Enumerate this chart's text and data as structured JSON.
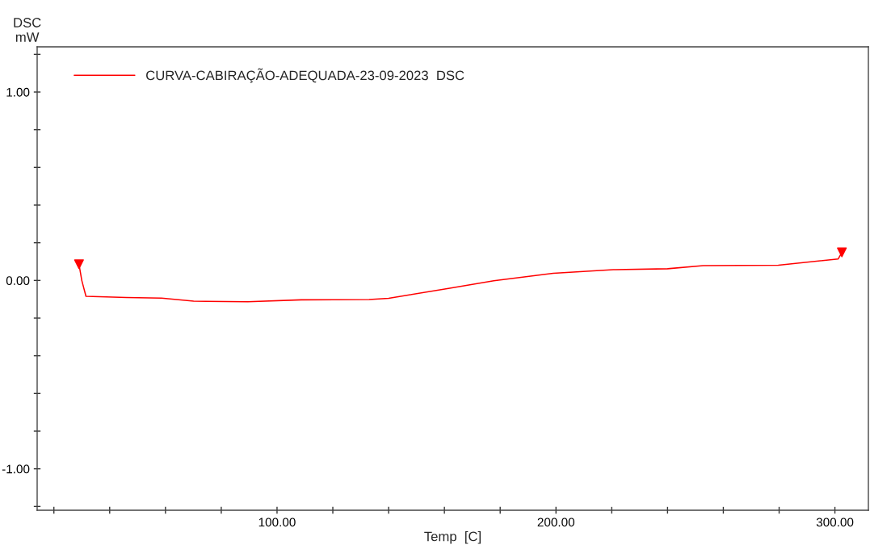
{
  "chart_data": {
    "type": "line",
    "xlabel": "Temp  [C]",
    "ylabel": "DSC\nmW",
    "xlim": [
      14,
      312
    ],
    "ylim": [
      -1.22,
      1.24
    ],
    "xticks": [
      {
        "value": 20,
        "label": null
      },
      {
        "value": 40,
        "label": null
      },
      {
        "value": 60,
        "label": null
      },
      {
        "value": 80,
        "label": null
      },
      {
        "value": 100,
        "label": "100.00"
      },
      {
        "value": 120,
        "label": null
      },
      {
        "value": 140,
        "label": null
      },
      {
        "value": 160,
        "label": null
      },
      {
        "value": 180,
        "label": null
      },
      {
        "value": 200,
        "label": "200.00"
      },
      {
        "value": 220,
        "label": null
      },
      {
        "value": 240,
        "label": null
      },
      {
        "value": 260,
        "label": null
      },
      {
        "value": 280,
        "label": null
      },
      {
        "value": 300,
        "label": "300.00"
      }
    ],
    "yticks": [
      {
        "value": -1.2,
        "label": null
      },
      {
        "value": -1.0,
        "label": "-1.00"
      },
      {
        "value": -0.8,
        "label": null
      },
      {
        "value": -0.6,
        "label": null
      },
      {
        "value": -0.4,
        "label": null
      },
      {
        "value": -0.2,
        "label": null
      },
      {
        "value": 0.0,
        "label": "0.00"
      },
      {
        "value": 0.2,
        "label": null
      },
      {
        "value": 0.4,
        "label": null
      },
      {
        "value": 0.6,
        "label": null
      },
      {
        "value": 0.8,
        "label": null
      },
      {
        "value": 1.0,
        "label": "1.00"
      },
      {
        "value": 1.2,
        "label": null
      }
    ],
    "grid": false,
    "legend": "top left",
    "series": [
      {
        "name": "CURVA-CABIRAÇÃO-ADEQUADA-23-09-2023  DSC",
        "color": "#ff0000",
        "marker": "none",
        "x": [
          29,
          30,
          31.5,
          46,
          58.6,
          70.1,
          89.5,
          108.7,
          133,
          140,
          147.4,
          161.9,
          177.7,
          199,
          220.6,
          240,
          252.8,
          279.7,
          301.2,
          302.5
        ],
        "values": [
          0.086,
          0.0,
          -0.084,
          -0.091,
          -0.094,
          -0.11,
          -0.113,
          -0.103,
          -0.101,
          -0.095,
          -0.077,
          -0.041,
          -0.002,
          0.038,
          0.057,
          0.062,
          0.079,
          0.081,
          0.114,
          0.149
        ]
      },
      {
        "color": "#ff0000",
        "type": "scatter",
        "marker": "triangle",
        "x": [
          29,
          302.5
        ],
        "values": [
          0.086,
          0.149
        ]
      }
    ]
  }
}
